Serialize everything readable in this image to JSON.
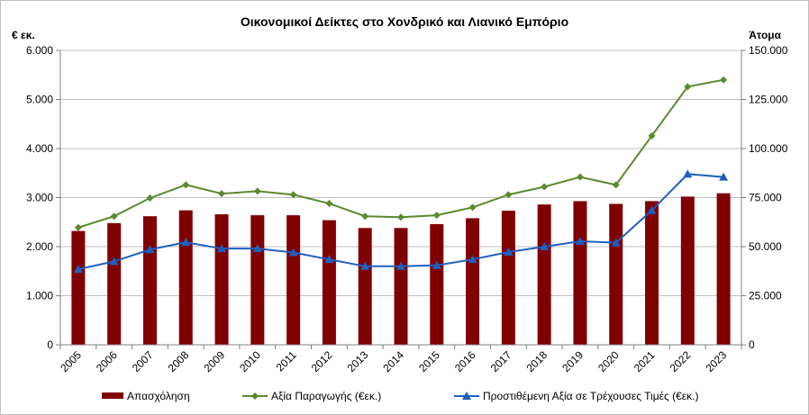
{
  "chart_data": {
    "type": "bar",
    "title": "Οικονομικοί  Δείκτες στο Χονδρικό και Λιανικό Εμπόριο",
    "y_left_label": "€ εκ.",
    "y_right_label": "Άτομα",
    "categories": [
      "2005",
      "2006",
      "2007",
      "2008",
      "2009",
      "2010",
      "2011",
      "2012",
      "2013",
      "2014",
      "2015",
      "2016",
      "2017",
      "2018",
      "2019",
      "2020",
      "2021",
      "2022",
      "2023"
    ],
    "y_left": {
      "min": 0,
      "max": 6000,
      "ticks": [
        0,
        1000,
        2000,
        3000,
        4000,
        5000,
        6000
      ],
      "tick_labels": [
        "0",
        "1.000",
        "2.000",
        "3.000",
        "4.000",
        "5.000",
        "6.000"
      ]
    },
    "y_right": {
      "min": 0,
      "max": 150000,
      "ticks": [
        0,
        25000,
        50000,
        75000,
        100000,
        125000,
        150000
      ],
      "tick_labels": [
        "0",
        "25.000",
        "50.000",
        "75.000",
        "100.000",
        "125.000",
        "150.000"
      ]
    },
    "grid": true,
    "legend_position": "bottom",
    "series": [
      {
        "name": "Απασχόληση",
        "type": "bar",
        "axis": "right",
        "color": "#7f0000",
        "values": [
          58000,
          62000,
          65500,
          68500,
          66500,
          66000,
          66000,
          63500,
          59500,
          59500,
          61500,
          64500,
          68300,
          71500,
          73200,
          71800,
          73200,
          75500,
          77200
        ]
      },
      {
        "name": "Αξία Παραγωγής (€εκ.)",
        "type": "line",
        "axis": "left",
        "marker": "diamond",
        "color": "#5b8a2e",
        "values": [
          2390,
          2620,
          2990,
          3260,
          3080,
          3130,
          3060,
          2880,
          2620,
          2600,
          2640,
          2800,
          3060,
          3220,
          3420,
          3260,
          4260,
          5260,
          5400
        ]
      },
      {
        "name": "Προστιθέμενη Αξία σε Τρέχουσες Τιμές (€εκ.)",
        "type": "line",
        "axis": "left",
        "marker": "triangle",
        "color": "#1f5fbf",
        "values": [
          1540,
          1700,
          1940,
          2090,
          1960,
          1960,
          1880,
          1740,
          1600,
          1600,
          1620,
          1740,
          1890,
          2000,
          2110,
          2080,
          2740,
          3480,
          3420
        ]
      }
    ]
  }
}
